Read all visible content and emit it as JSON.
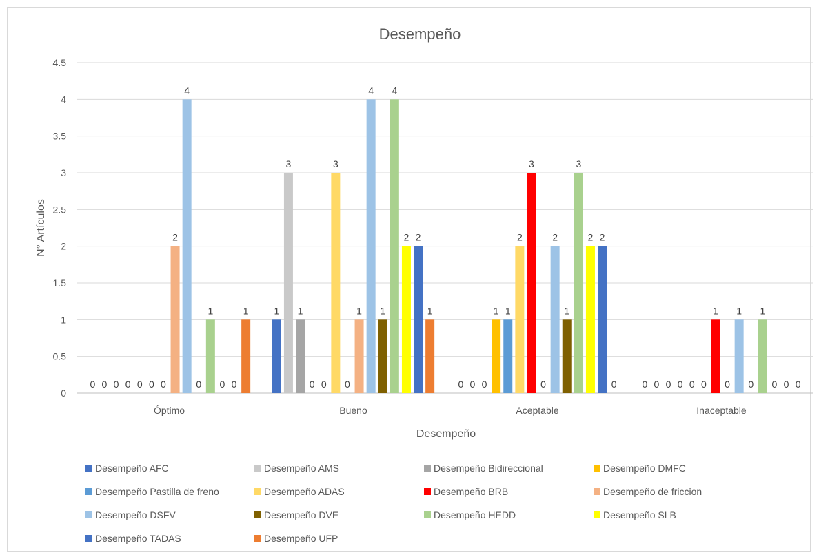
{
  "chart_data": {
    "type": "bar",
    "title": "Desempeño",
    "xlabel": "Desempeño",
    "ylabel": "N° Artículos",
    "categories": [
      "Óptimo",
      "Bueno",
      "Aceptable",
      "Inaceptable"
    ],
    "ylim": [
      0,
      4.5
    ],
    "yticks": [
      "0",
      "0.5",
      "1",
      "1.5",
      "2",
      "2.5",
      "3",
      "3.5",
      "4",
      "4.5"
    ],
    "grid": true,
    "legend_position": "bottom",
    "series": [
      {
        "name": "Desempeño AFC",
        "color": "#4472C4",
        "values": [
          0,
          1,
          0,
          0
        ]
      },
      {
        "name": "Desempeño AMS",
        "color": "#C9C9C9",
        "values": [
          0,
          3,
          0,
          0
        ]
      },
      {
        "name": "Desempeño Bidireccional",
        "color": "#A5A5A5",
        "values": [
          0,
          1,
          0,
          0
        ]
      },
      {
        "name": "Desempeño DMFC",
        "color": "#FFC000",
        "values": [
          0,
          0,
          1,
          0
        ]
      },
      {
        "name": "Desempeño Pastilla de freno",
        "color": "#5B9BD5",
        "values": [
          0,
          0,
          1,
          0
        ]
      },
      {
        "name": "Desempeño ADAS",
        "color": "#FFD966",
        "values": [
          0,
          3,
          2,
          0
        ]
      },
      {
        "name": "Desempeño BRB",
        "color": "#FF0000",
        "values": [
          0,
          0,
          3,
          1
        ]
      },
      {
        "name": "Desempeño de friccion",
        "color": "#F4B183",
        "values": [
          2,
          1,
          0,
          0
        ]
      },
      {
        "name": "Desempeño DSFV",
        "color": "#9DC3E6",
        "values": [
          4,
          4,
          2,
          1
        ]
      },
      {
        "name": "Desempeño DVE",
        "color": "#7F6000",
        "values": [
          0,
          1,
          1,
          0
        ]
      },
      {
        "name": "Desempeño HEDD",
        "color": "#A9D18E",
        "values": [
          1,
          4,
          3,
          1
        ]
      },
      {
        "name": "Desempeño SLB",
        "color": "#FFFF00",
        "values": [
          0,
          2,
          2,
          0
        ]
      },
      {
        "name": "Desempeño TADAS",
        "color": "#4472C4",
        "values": [
          0,
          2,
          2,
          0
        ]
      },
      {
        "name": "Desempeño UFP",
        "color": "#ED7D31",
        "values": [
          1,
          1,
          0,
          0
        ]
      }
    ]
  }
}
